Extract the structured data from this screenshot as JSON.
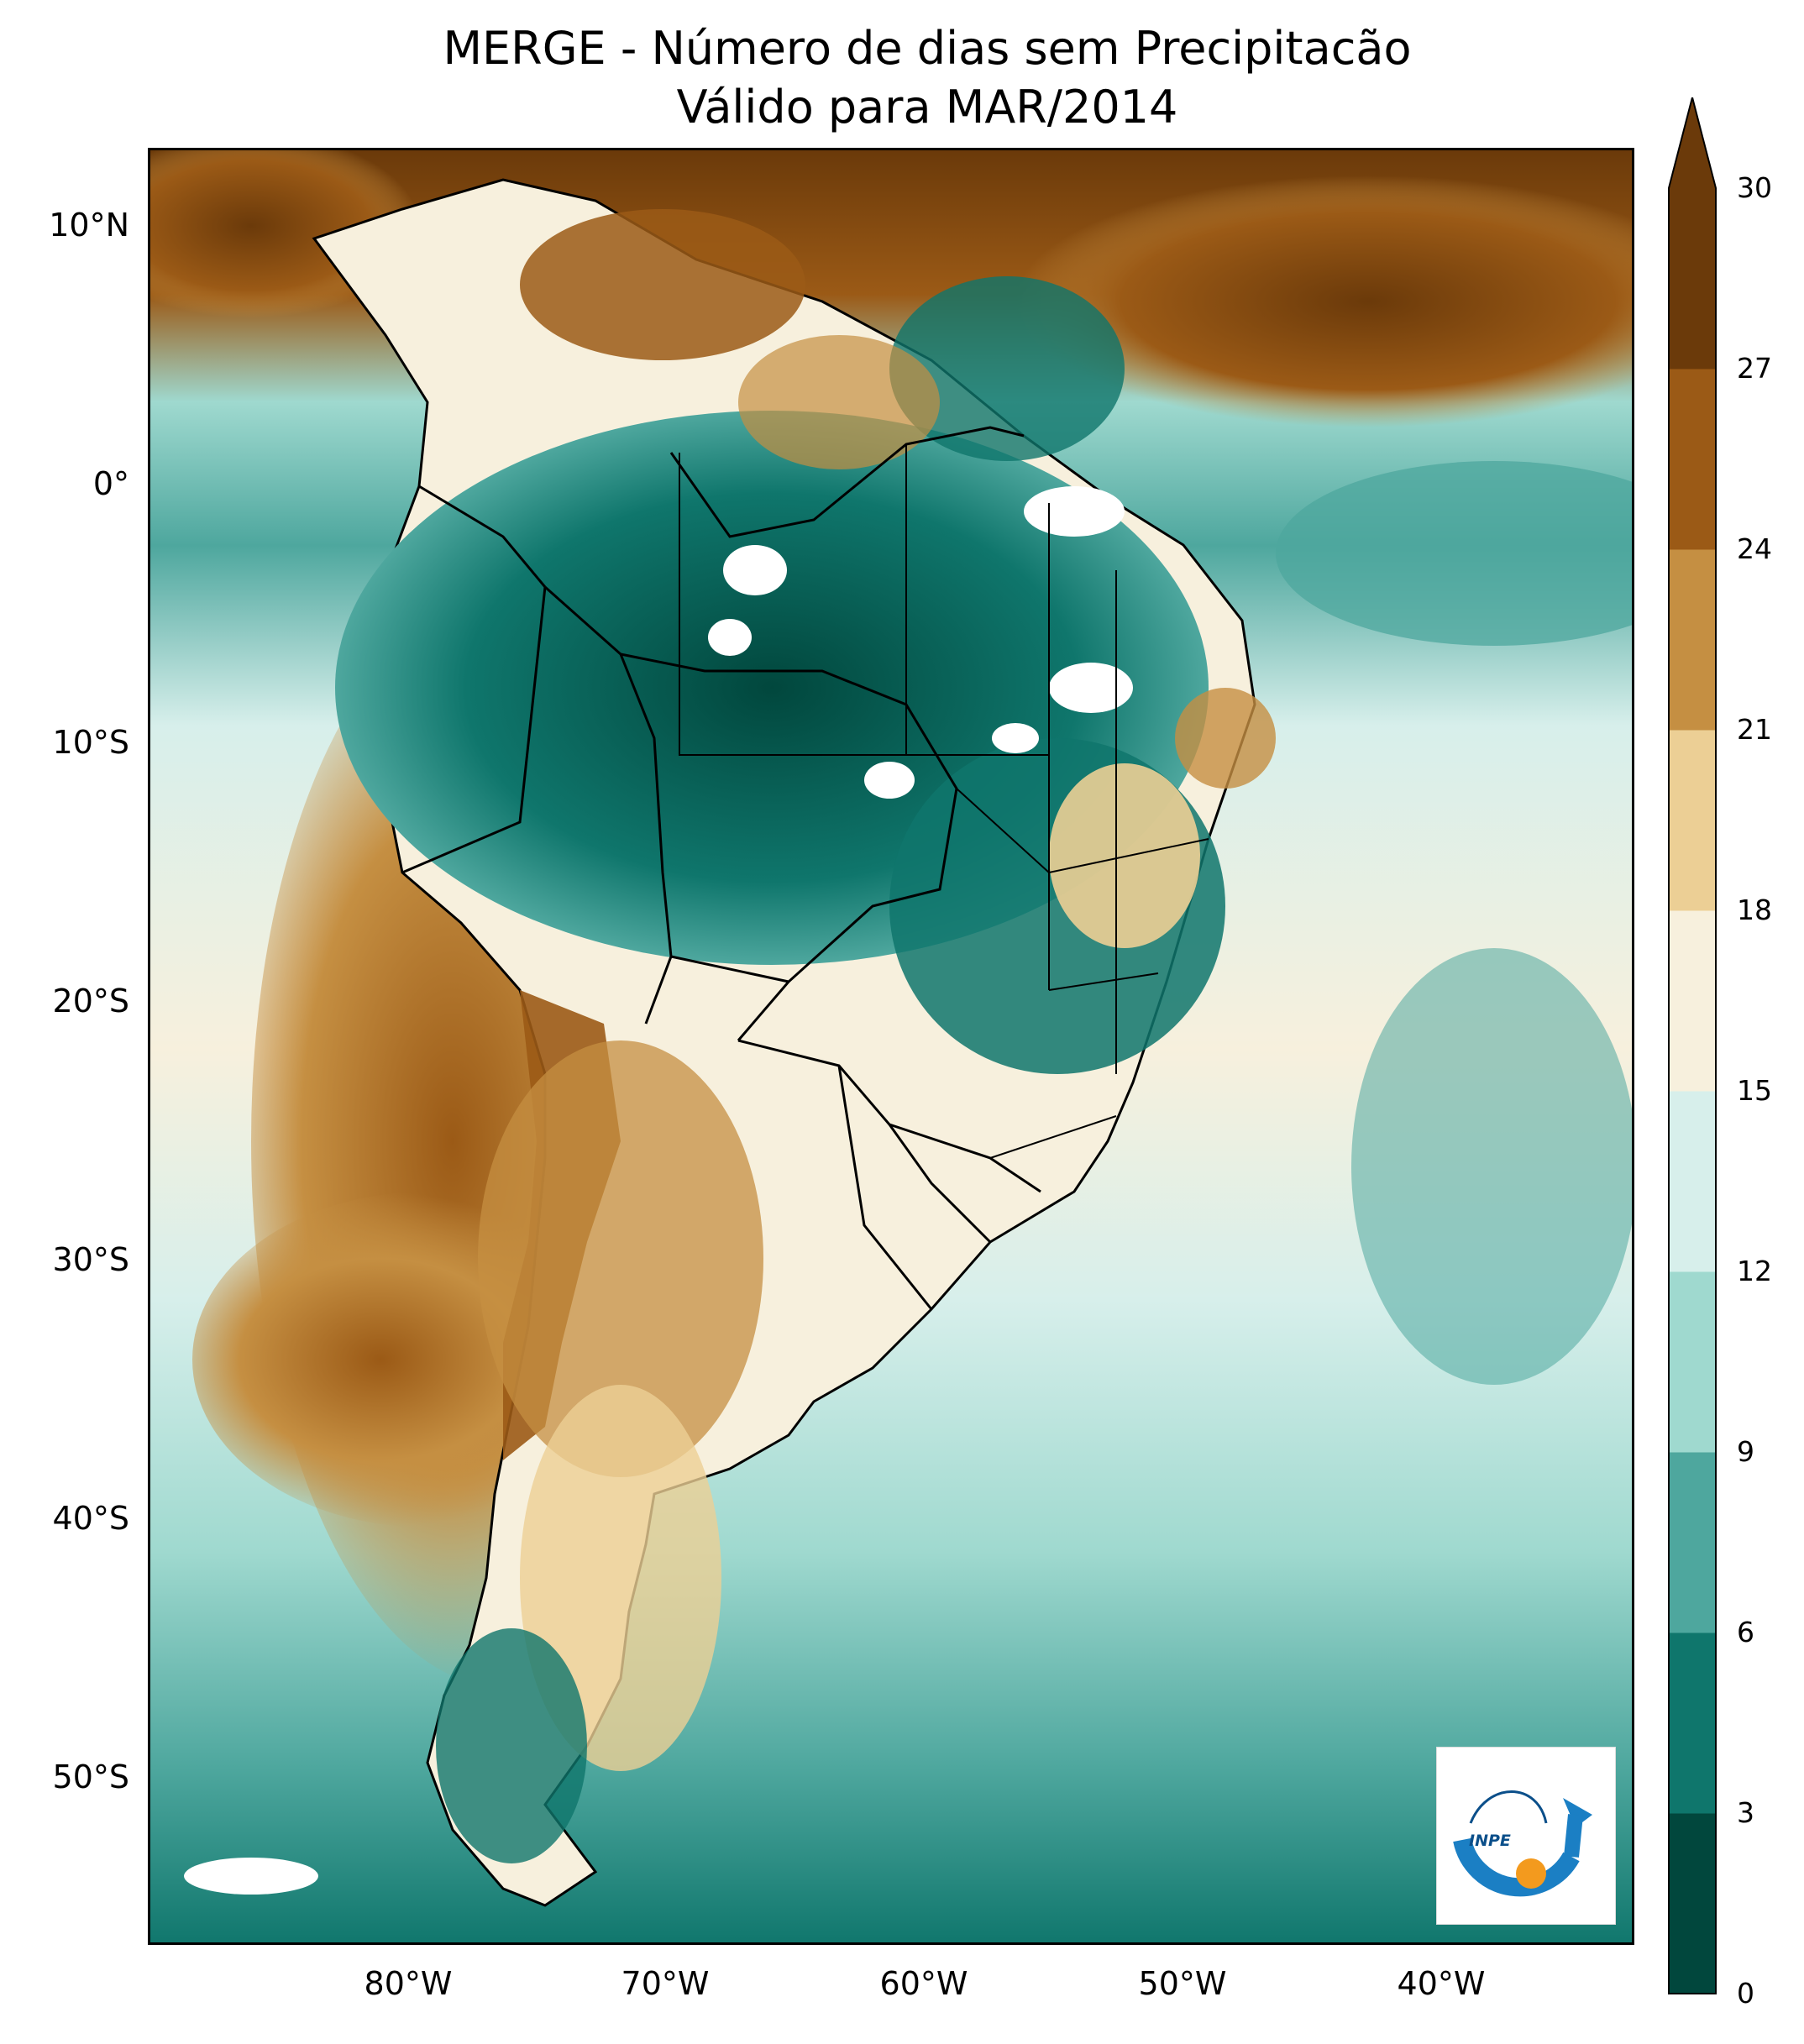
{
  "title": {
    "line1": "MERGE - Número de dias sem Precipitacão",
    "line2": "Válido para MAR/2014"
  },
  "axes": {
    "lat_ticks": [
      "10°N",
      "0°",
      "10°S",
      "20°S",
      "30°S",
      "40°S",
      "50°S"
    ],
    "lon_ticks": [
      "80°W",
      "70°W",
      "60°W",
      "50°W",
      "40°W"
    ]
  },
  "colorbar": {
    "ticks": [
      "0",
      "3",
      "6",
      "9",
      "12",
      "15",
      "18",
      "21",
      "24",
      "27",
      "30"
    ],
    "colors": [
      "#01473d",
      "#0f766c",
      "#4ea79e",
      "#9fd9cf",
      "#d7efeb",
      "#f7f0dd",
      "#eccf95",
      "#c58f42",
      "#9b5a16",
      "#6b3a0a"
    ],
    "extend": "max"
  },
  "logo": {
    "text": "INPE"
  }
}
